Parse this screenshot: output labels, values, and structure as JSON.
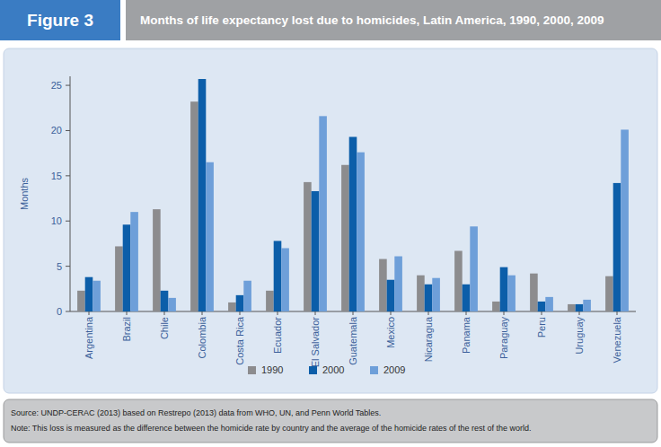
{
  "chart_data": {
    "type": "bar",
    "figure_label": "Figure 3",
    "title": "Months of life expectancy lost due to homicides, Latin America, 1990, 2000, 2009",
    "ylabel": "Months",
    "categories": [
      "Argentina",
      "Brazil",
      "Chile",
      "Colombia",
      "Costa Rica",
      "Ecuador",
      "El Salvador",
      "Guatemala",
      "Mexico",
      "Nicaragua",
      "Panama",
      "Paraguay",
      "Peru",
      "Uruguay",
      "Venezuela"
    ],
    "series": [
      {
        "name": "1990",
        "color": "#8c8c8e",
        "values": [
          2.3,
          7.2,
          11.3,
          23.2,
          1.0,
          2.3,
          14.3,
          16.2,
          5.8,
          4.0,
          6.7,
          1.1,
          4.2,
          0.8,
          3.9
        ]
      },
      {
        "name": "2000",
        "color": "#0c5ea9",
        "values": [
          3.8,
          9.6,
          2.3,
          25.7,
          1.8,
          7.8,
          13.3,
          19.3,
          3.5,
          3.0,
          3.0,
          4.9,
          1.1,
          0.8,
          14.2
        ]
      },
      {
        "name": "2009",
        "color": "#6e9fd9",
        "values": [
          3.4,
          11.0,
          1.5,
          16.5,
          3.4,
          7.0,
          21.6,
          17.6,
          6.1,
          3.7,
          9.4,
          4.0,
          1.6,
          1.3,
          20.1
        ]
      }
    ],
    "ylim": [
      0,
      26
    ],
    "yticks": [
      0,
      5,
      10,
      15,
      20,
      25
    ],
    "grid": false,
    "legend": "bottom",
    "source": "Source: UNDP-CERAC (2013) based on Restrepo (2013) data from WHO, UN, and Penn World Tables.",
    "note": "Note: This loss is measured as the difference between the homicide rate by country and the average of the homicide rates of the rest of the world."
  }
}
